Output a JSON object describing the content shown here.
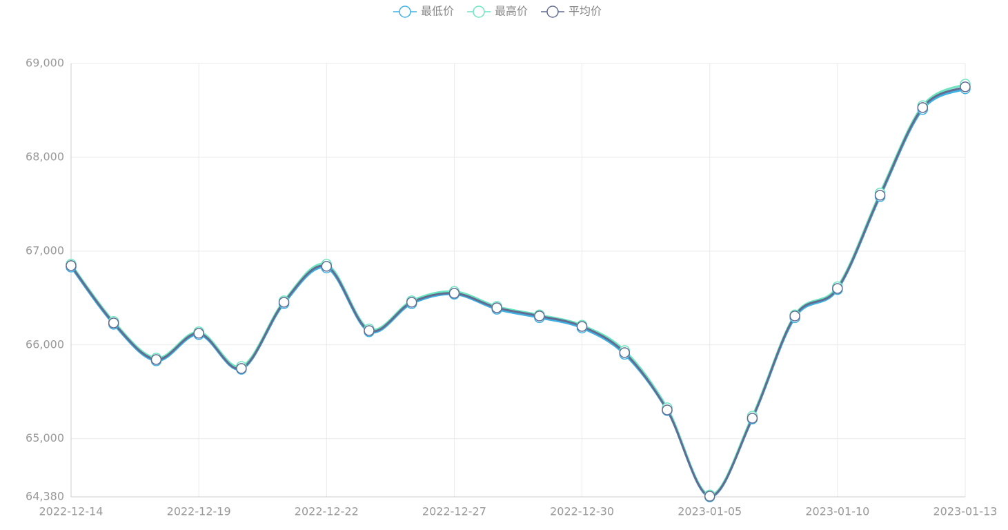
{
  "chart_data": {
    "type": "line",
    "categories": [
      "2022-12-14",
      null,
      null,
      "2022-12-19",
      null,
      null,
      "2022-12-22",
      null,
      null,
      "2022-12-27",
      null,
      null,
      "2022-12-30",
      null,
      null,
      "2023-01-05",
      null,
      null,
      "2023-01-10",
      null,
      null,
      "2023-01-13"
    ],
    "series": [
      {
        "name": "最低价",
        "color": "#3fb1e3",
        "values": [
          66830,
          66220,
          65830,
          66110,
          65740,
          66440,
          66820,
          66140,
          66440,
          66540,
          66380,
          66290,
          66180,
          65900,
          65300,
          64380,
          65210,
          66290,
          66590,
          67580,
          68510,
          68730
        ]
      },
      {
        "name": "最高价",
        "color": "#6be6c1",
        "values": [
          66860,
          66250,
          65860,
          66140,
          65770,
          66470,
          66860,
          66170,
          66470,
          66570,
          66410,
          66320,
          66210,
          65940,
          65330,
          64400,
          65240,
          66320,
          66620,
          67620,
          68550,
          68780
        ]
      },
      {
        "name": "平均价",
        "color": "#626c91",
        "values": [
          66845,
          66234,
          65844,
          66124,
          65749,
          66455,
          66838,
          66153,
          66455,
          66551,
          66396,
          66308,
          66197,
          65918,
          65307,
          64387,
          65219,
          66308,
          66602,
          67596,
          68530,
          68751
        ]
      }
    ],
    "ylim": [
      64380,
      69000
    ],
    "yticks": [
      {
        "value": 64380,
        "label": "64,380"
      },
      {
        "value": 65000,
        "label": "65,000"
      },
      {
        "value": 66000,
        "label": "66,000"
      },
      {
        "value": 67000,
        "label": "67,000"
      },
      {
        "value": 68000,
        "label": "68,000"
      },
      {
        "value": 69000,
        "label": "69,000"
      }
    ],
    "grid": true,
    "smooth": true,
    "legend": "top"
  }
}
